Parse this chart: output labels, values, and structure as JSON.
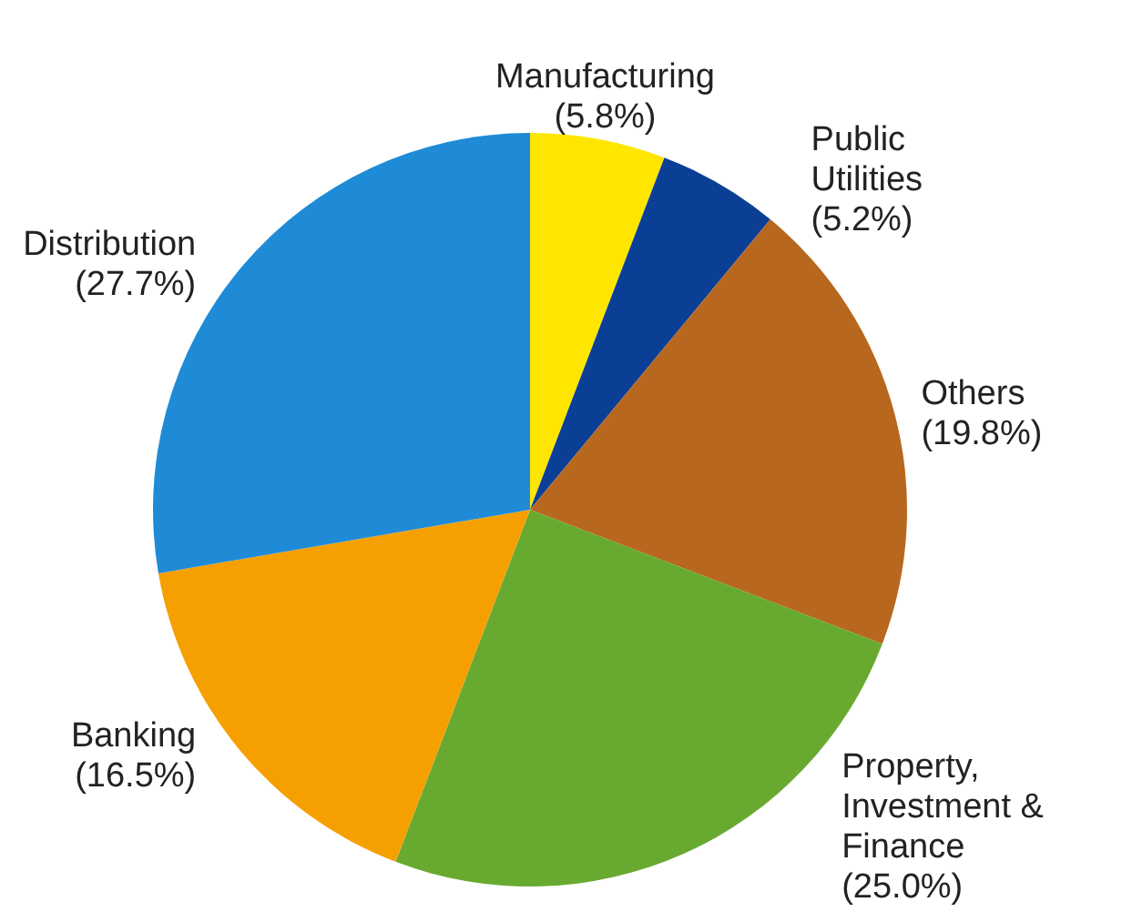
{
  "chart_data": {
    "type": "pie",
    "categories": [
      "Manufacturing",
      "Public Utilities",
      "Others",
      "Property, Investment & Finance",
      "Banking",
      "Distribution"
    ],
    "values": [
      5.8,
      5.2,
      19.8,
      25.0,
      16.5,
      27.7
    ],
    "value_labels": [
      "(5.8%)",
      "(5.2%)",
      "(19.8%)",
      "(25.0%)",
      "(16.5%)",
      "(27.7%)"
    ],
    "colors": [
      "#ffe600",
      "#0b3f96",
      "#b8671f",
      "#68aa30",
      "#f5a000",
      "#1f8bd6"
    ]
  }
}
